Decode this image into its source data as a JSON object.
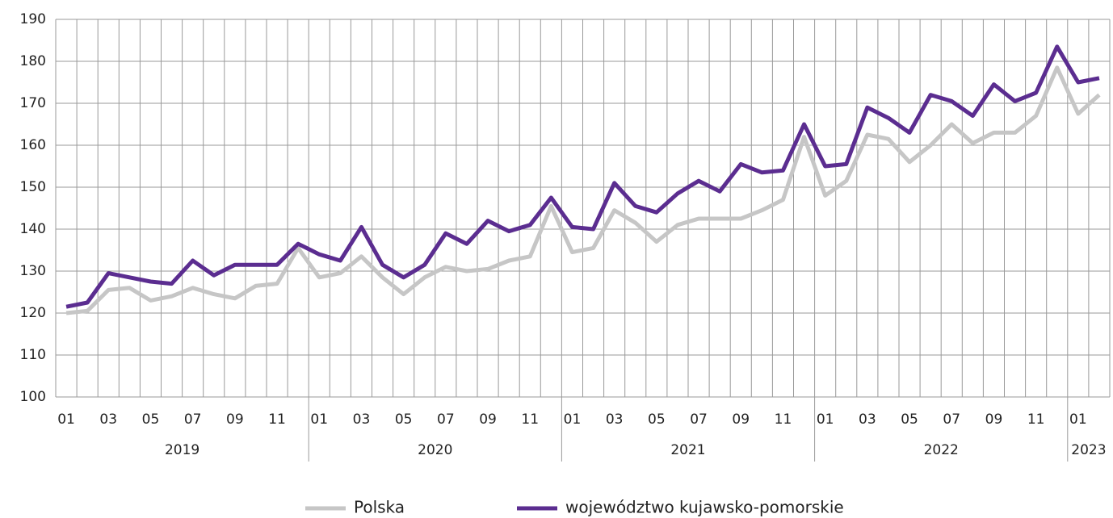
{
  "chart_data": {
    "type": "line",
    "categories": [
      "01",
      null,
      "03",
      null,
      "05",
      null,
      "07",
      null,
      "09",
      null,
      "11",
      null,
      "01",
      null,
      "03",
      null,
      "05",
      null,
      "07",
      null,
      "09",
      null,
      "11",
      null,
      "01",
      null,
      "03",
      null,
      "05",
      null,
      "07",
      null,
      "09",
      null,
      "11",
      null,
      "01",
      null,
      "03",
      null,
      "05",
      null,
      "07",
      null,
      "09",
      null,
      "11",
      null,
      "01",
      null
    ],
    "groups": [
      {
        "label": "2019",
        "span": 12
      },
      {
        "label": "2020",
        "span": 12
      },
      {
        "label": "2021",
        "span": 12
      },
      {
        "label": "2022",
        "span": 12
      },
      {
        "label": "2023",
        "span": 2
      }
    ],
    "series": [
      {
        "name": "Polska",
        "color": "#c6c6c6",
        "values": [
          120,
          120.5,
          125.5,
          126,
          123,
          124,
          126,
          124.5,
          123.5,
          126.5,
          127,
          135.5,
          128.5,
          129.5,
          133.5,
          128.5,
          124.5,
          128.5,
          131,
          130,
          130.5,
          132.5,
          133.5,
          145.5,
          134.5,
          135.5,
          144.5,
          141.5,
          137,
          141,
          142.5,
          142.5,
          142.5,
          144.5,
          147,
          162,
          148,
          151.5,
          162.5,
          161.5,
          156,
          160,
          165,
          160.5,
          163,
          163,
          167,
          178.5,
          167.5,
          172
        ]
      },
      {
        "name": "województwo kujawsko-pomorskie",
        "color": "#5b2d90",
        "values": [
          121.5,
          122.5,
          129.5,
          128.5,
          127.5,
          127,
          132.5,
          129,
          131.5,
          131.5,
          131.5,
          136.5,
          134,
          132.5,
          140.5,
          131.5,
          128.5,
          131.5,
          139,
          136.5,
          142,
          139.5,
          141,
          147.5,
          140.5,
          140,
          151,
          145.5,
          144,
          148.5,
          151.5,
          149,
          155.5,
          153.5,
          154,
          165,
          155,
          155.5,
          169,
          166.5,
          163,
          172,
          170.5,
          167,
          174.5,
          170.5,
          172.5,
          183.5,
          175,
          176
        ]
      }
    ],
    "ylim": [
      100,
      190
    ],
    "yticks": [
      100,
      110,
      120,
      130,
      140,
      150,
      160,
      170,
      180,
      190
    ],
    "grid": true,
    "legend": "bottom"
  }
}
